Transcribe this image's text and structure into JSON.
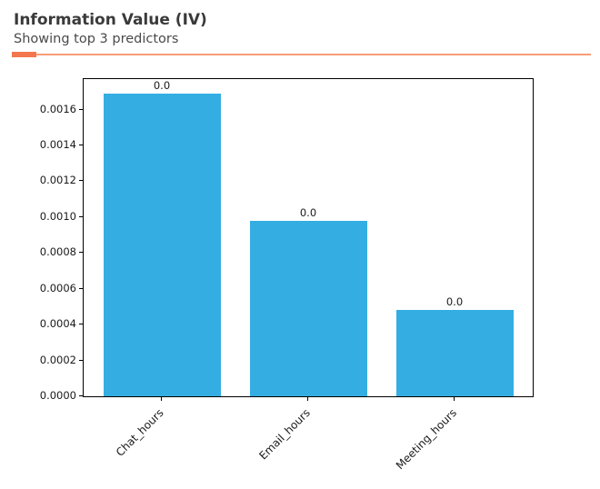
{
  "header": {
    "title": "Information Value (IV)",
    "subtitle": "Showing top 3 predictors",
    "accent_dash_color": "#f4764e",
    "accent_rule_color": "#f59d76"
  },
  "chart_data": {
    "type": "bar",
    "title": "Information Value (IV)",
    "subtitle": "Showing top 3 predictors",
    "categories": [
      "Chat_hours",
      "Email_hours",
      "Meeting_hours"
    ],
    "values": [
      0.00169,
      0.00098,
      0.00048
    ],
    "bar_value_labels": [
      "0.0",
      "0.0",
      "0.0"
    ],
    "xlabel": "",
    "ylabel": "",
    "ylim": [
      0,
      0.00177
    ],
    "yticks": [
      0.0,
      0.0002,
      0.0004,
      0.0006,
      0.0008,
      0.001,
      0.0012,
      0.0014,
      0.0016
    ],
    "ytick_labels": [
      "0.0000",
      "0.0002",
      "0.0004",
      "0.0006",
      "0.0008",
      "0.0010",
      "0.0012",
      "0.0014",
      "0.0016"
    ],
    "xtick_rotation_deg": 45,
    "bar_color": "#34aee2",
    "grid": false,
    "legend": null
  }
}
